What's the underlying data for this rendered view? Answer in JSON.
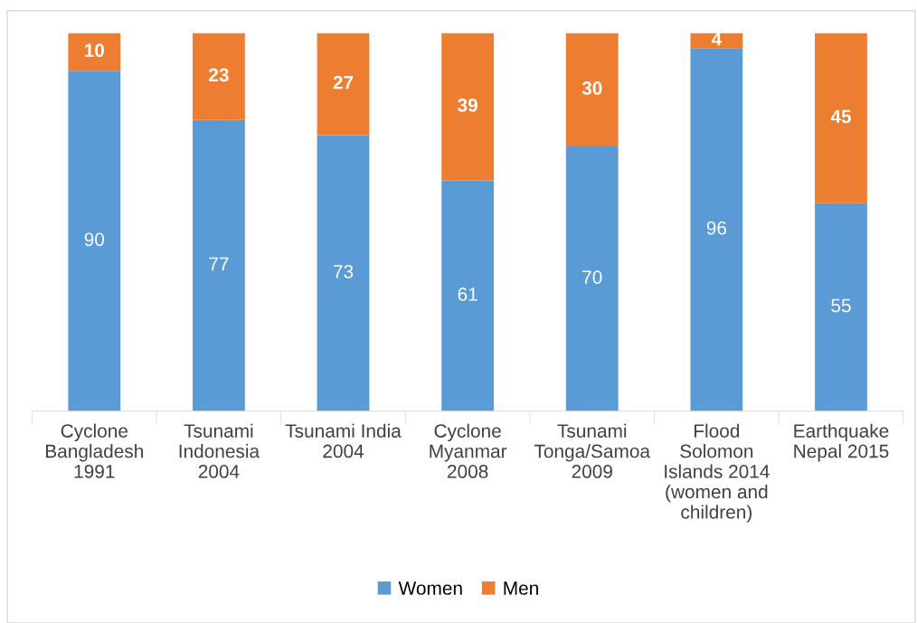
{
  "chart_data": {
    "type": "bar",
    "stacked": true,
    "categories": [
      "Cyclone\nBangladesh\n1991",
      "Tsunami\nIndonesia\n2004",
      "Tsunami India\n2004",
      "Cyclone\nMyanmar\n2008",
      "Tsunami\nTonga/Samoa\n2009",
      "Flood\nSolomon\nIslands 2014\n(women and\nchildren)",
      "Earthquake\nNepal 2015"
    ],
    "series": [
      {
        "name": "Women",
        "color": "#5b9bd5",
        "values": [
          90,
          77,
          73,
          61,
          70,
          96,
          55
        ]
      },
      {
        "name": "Men",
        "color": "#ed7d31",
        "values": [
          10,
          23,
          27,
          39,
          30,
          4,
          45
        ]
      }
    ],
    "data_labels": true,
    "legend": "bottom",
    "grid": false,
    "tick_labels": "x"
  }
}
